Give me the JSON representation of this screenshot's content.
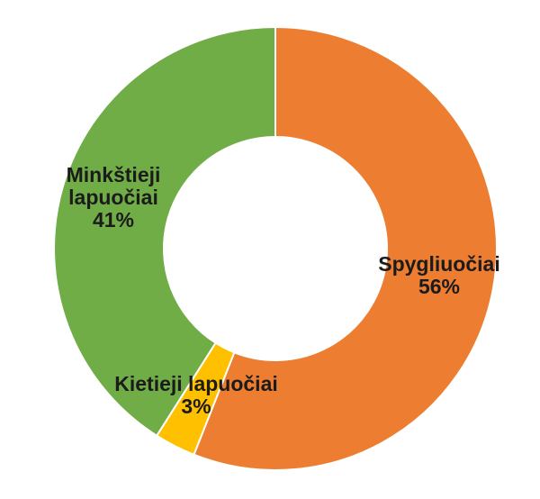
{
  "page": {
    "background": "#FFFFFF"
  },
  "chart_data": {
    "type": "pie",
    "subtype": "donut",
    "title": "",
    "direction": "clockwise",
    "start_angle_deg": 0,
    "donut_hole_ratio": 0.5,
    "slice_border_color": "#FFFFFF",
    "label_color": "#1B1B1B",
    "categories": [
      "Spygliuočiai",
      "Kietieji lapuočiai",
      "Minkštieji lapuočiai"
    ],
    "values": [
      56,
      3,
      41
    ],
    "slices": [
      {
        "label": "Spygliuočiai",
        "value": 56,
        "pct_label": "56%",
        "color": "#ED7D31"
      },
      {
        "label": "Kietieji lapuočiai",
        "value": 3,
        "pct_label": "3%",
        "color": "#FFC000"
      },
      {
        "label": "Minkštieji lapuočiai",
        "value": 41,
        "pct_label": "41%",
        "color": "#70AD47"
      }
    ]
  }
}
